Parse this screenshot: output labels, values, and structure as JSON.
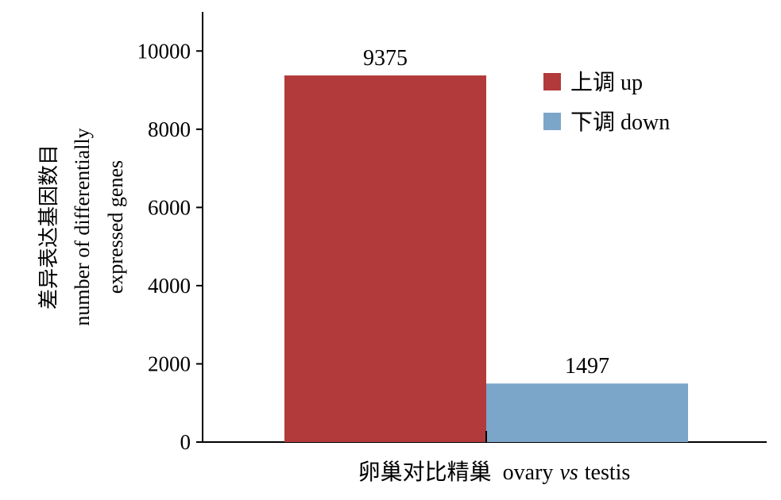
{
  "chart_data": {
    "type": "bar",
    "categories": [
      "卵巢对比精巢 ovary vs testis"
    ],
    "series": [
      {
        "name": "上调 up",
        "values": [
          9375
        ],
        "color": "#b23a3a"
      },
      {
        "name": "下调 down",
        "values": [
          1497
        ],
        "color": "#7ba6c9"
      }
    ],
    "data_labels": [
      "9375",
      "1497"
    ],
    "ylabel_lines": [
      "差异表达基因数目",
      "number of differentially",
      "expressed genes"
    ],
    "xlabel": {
      "zh": "卵巢对比精巢",
      "en_before": "ovary",
      "en_italic": "vs",
      "en_after": "testis"
    },
    "ylim": [
      0,
      11000
    ],
    "yticks": [
      0,
      2000,
      4000,
      6000,
      8000,
      10000
    ],
    "ytick_labels": [
      "0",
      "2000",
      "4000",
      "6000",
      "8000",
      "10000"
    ],
    "grid": false,
    "legend": {
      "position": "top-right",
      "entries": [
        "上调 up",
        "下调 down"
      ]
    }
  }
}
